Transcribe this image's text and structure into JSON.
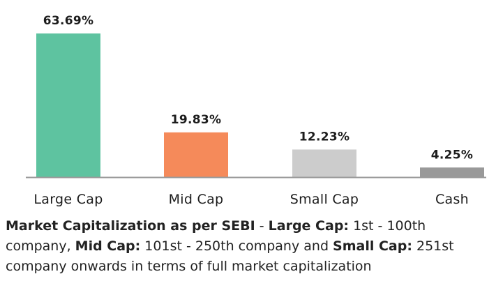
{
  "chart_data": {
    "type": "bar",
    "categories": [
      "Large Cap",
      "Mid Cap",
      "Small Cap",
      "Cash"
    ],
    "values": [
      63.69,
      19.83,
      12.23,
      4.25
    ],
    "value_labels": [
      "63.69%",
      "19.83%",
      "12.23%",
      "4.25%"
    ],
    "colors": [
      "#5ec3a0",
      "#f58a5a",
      "#cccccc",
      "#999999"
    ],
    "baseline_color": "#999999",
    "title": "",
    "xlabel": "",
    "ylabel": "",
    "ylim": [
      0,
      63.69
    ],
    "grid": false,
    "legend": "none"
  },
  "footnote": {
    "b1": "Market Capitalization as per SEBI",
    "t1": " - ",
    "b2": "Large Cap:",
    "t2": " 1st - 100th company, ",
    "b3": "Mid Cap:",
    "t3": " 101st - 250th company and ",
    "b4": "Small Cap:",
    "t4": " 251st company onwards in terms of full market capitalization"
  }
}
